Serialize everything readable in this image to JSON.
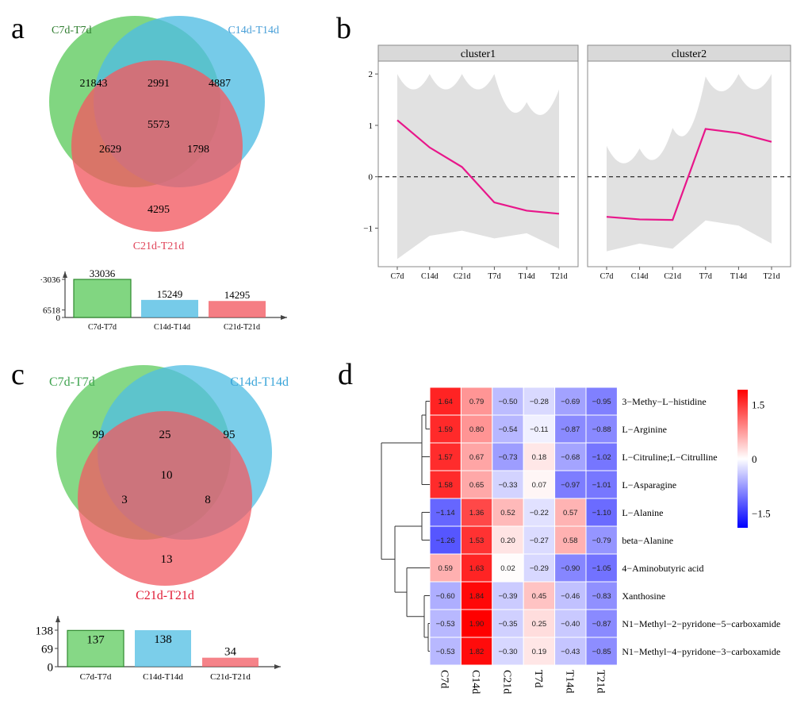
{
  "panel_labels": {
    "a": "a",
    "b": "b",
    "c": "c",
    "d": "d"
  },
  "colors": {
    "green": "#5ecb5e",
    "blue": "#4fbde3",
    "red": "#f25a62",
    "magenta": "#e8168a",
    "gray_band": "#e1e1e1",
    "green_dark": "#2f8a2f",
    "blue_text": "#4aa0d8",
    "red_text": "#e0455a",
    "green_c": "#3fa34f",
    "red_c": "#e01b35"
  },
  "chart_data": [
    {
      "id": "a",
      "type": "venn",
      "sets": [
        "C7d-T7d",
        "C14d-T14d",
        "C21d-T21d"
      ],
      "regions": {
        "C7d-T7d_only": 21843,
        "C14d-T14d_only": 4887,
        "C21d-T21d_only": 4295,
        "C7d&C14d": 2991,
        "C7d&C21d": 2629,
        "C14d&C21d": 1798,
        "all": 5573
      },
      "bar": {
        "type": "bar",
        "categories": [
          "C7d-T7d",
          "C14d-T14d",
          "C21d-T21d"
        ],
        "values": [
          33036,
          15249,
          14295
        ],
        "yticks": [
          0,
          6518,
          33036
        ],
        "ytick_labels": [
          "0",
          "6518",
          "·3036"
        ]
      }
    },
    {
      "id": "b",
      "type": "line",
      "facets": [
        {
          "title": "cluster1",
          "x": [
            "C7d",
            "C14d",
            "C21d",
            "T7d",
            "T14d",
            "T21d"
          ],
          "mean": [
            1.1,
            0.57,
            0.19,
            -0.5,
            -0.66,
            -0.72
          ],
          "band_upper": [
            2.0,
            2.0,
            2.0,
            2.0,
            1.45,
            1.7
          ],
          "band_lower": [
            -1.6,
            -1.15,
            -1.05,
            -1.2,
            -1.1,
            -1.4
          ]
        },
        {
          "title": "cluster2",
          "x": [
            "C7d",
            "C14d",
            "C21d",
            "T7d",
            "T14d",
            "T21d"
          ],
          "mean": [
            -0.78,
            -0.83,
            -0.84,
            0.93,
            0.85,
            0.68
          ],
          "band_upper": [
            0.6,
            0.55,
            0.95,
            1.95,
            2.0,
            2.0
          ],
          "band_lower": [
            -1.45,
            -1.3,
            -1.4,
            -0.85,
            -0.95,
            -1.3
          ]
        }
      ],
      "yticks": [
        -1,
        0,
        1,
        2
      ],
      "ylim": [
        -1.75,
        2.25
      ],
      "hline": 0
    },
    {
      "id": "c",
      "type": "venn",
      "sets": [
        "C7d-T7d",
        "C14d-T14d",
        "C21d-T21d"
      ],
      "regions": {
        "C7d-T7d_only": 99,
        "C14d-T14d_only": 95,
        "C21d-T21d_only": 13,
        "C7d&C14d": 25,
        "C7d&C21d": 3,
        "C14d&C21d": 8,
        "all": 10
      },
      "bar": {
        "type": "bar",
        "categories": [
          "C7d-T7d",
          "C14d-T14d",
          "C21d-T21d"
        ],
        "values": [
          137,
          138,
          34
        ],
        "yticks": [
          0,
          69,
          138
        ],
        "ytick_labels": [
          "0",
          "69",
          "138"
        ]
      }
    },
    {
      "id": "d",
      "type": "heatmap",
      "columns": [
        "C7d",
        "C14d",
        "C21d",
        "T7d",
        "T14d",
        "T21d"
      ],
      "rows": [
        "3−Methy−L−histidine",
        "L−Arginine",
        "L−Citruline;L−Citrulline",
        "L−Asparagine",
        "L−Alanine",
        "beta−Alanine",
        "4−Aminobutyric acid",
        "Xanthosine",
        "N1−Methyl−2−pyridone−5−carboxamide",
        "N1−Methyl−4−pyridone−3−carboxamide"
      ],
      "values": [
        [
          "1.64",
          "0.79",
          "−0.50",
          "−0.28",
          "−0.69",
          "−0.95"
        ],
        [
          "1.59",
          "0.80",
          "−0.54",
          "−0.11",
          "−0.87",
          "−0.88"
        ],
        [
          "1.57",
          "0.67",
          "−0.73",
          "0.18",
          "−0.68",
          "−1.02"
        ],
        [
          "1.58",
          "0.65",
          "−0.33",
          "0.07",
          "−0.97",
          "−1.01"
        ],
        [
          "−1.14",
          "1.36",
          "0.52",
          "−0.22",
          "0.57",
          "−1.10"
        ],
        [
          "−1.26",
          "1.53",
          "0.20",
          "−0.27",
          "0.58",
          "−0.79"
        ],
        [
          "0.59",
          "1.63",
          "0.02",
          "−0.29",
          "−0.90",
          "−1.05"
        ],
        [
          "−0.60",
          "1.84",
          "−0.39",
          "0.45",
          "−0.46",
          "−0.83"
        ],
        [
          "−0.53",
          "1.90",
          "−0.35",
          "0.25",
          "−0.40",
          "−0.87"
        ],
        [
          "−0.53",
          "1.82",
          "−0.30",
          "0.19",
          "−0.43",
          "−0.85"
        ]
      ],
      "legend": {
        "ticks": [
          1.5,
          0,
          -1.5
        ],
        "tick_labels": [
          "1.5",
          "0",
          "−1.5"
        ],
        "range": [
          -1.9,
          1.9
        ]
      }
    }
  ]
}
